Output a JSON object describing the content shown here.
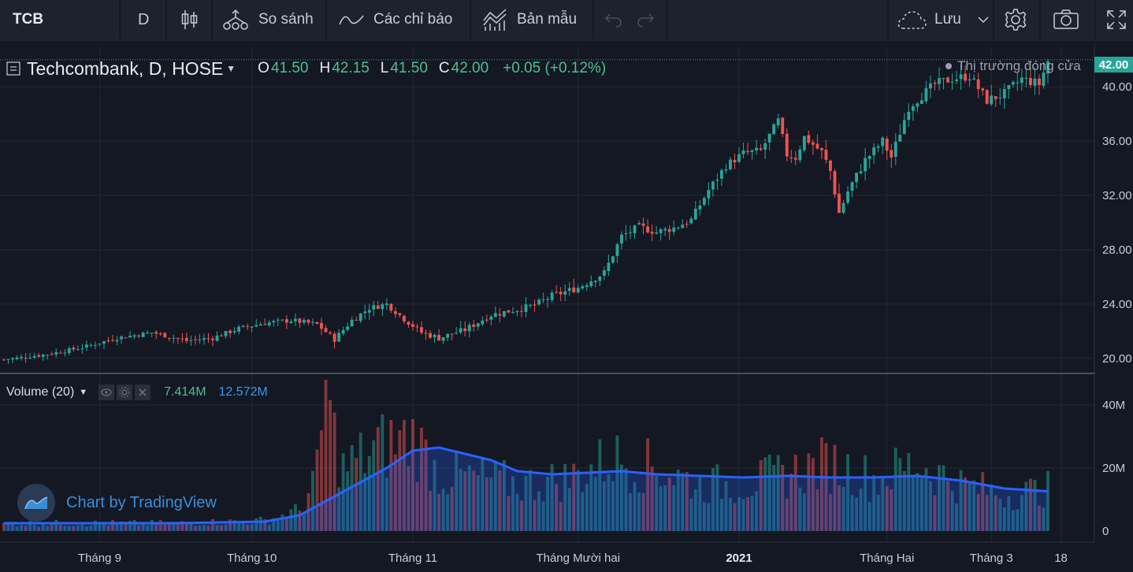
{
  "toolbar": {
    "symbol": "TCB",
    "interval": "D",
    "compare_label": "So sánh",
    "indicators_label": "Các chỉ báo",
    "templates_label": "Bản mẫu",
    "save_label": "Lưu"
  },
  "legend": {
    "title": "Techcombank, D, HOSE",
    "open_key": "O",
    "open": "41.50",
    "high_key": "H",
    "high": "42.15",
    "low_key": "L",
    "low": "41.50",
    "close_key": "C",
    "close": "42.00",
    "change": "+0.05 (+0.12%)"
  },
  "market_status": "Thị trường đóng cửa",
  "last_price_tag": "42.00",
  "volume_legend": {
    "label": "Volume (20)",
    "volume": "7.414M",
    "volume_ma": "12.572M"
  },
  "watermark": "Chart by TradingView",
  "colors": {
    "up": "#26a69a",
    "down": "#ef5350",
    "ma_line": "#2962ff",
    "background": "#141823"
  },
  "chart_data": [
    {
      "type": "candlestick",
      "symbol": "TCB",
      "price_axis": {
        "ticks": [
          "20.00",
          "24.00",
          "28.00",
          "32.00",
          "36.00",
          "40.00"
        ],
        "ylim": [
          19.0,
          42.8
        ]
      },
      "time_axis": {
        "ticks": [
          "Tháng 9",
          "Tháng 10",
          "Tháng 11",
          "Tháng Mười hai",
          "2021",
          "Tháng Hai",
          "Tháng 3",
          "18"
        ]
      },
      "grid": true,
      "close_points": [
        [
          0,
          19.9
        ],
        [
          10,
          20.3
        ],
        [
          18,
          20.8
        ],
        [
          26,
          21.5
        ],
        [
          34,
          21.9
        ],
        [
          42,
          21.3
        ],
        [
          48,
          21.5
        ],
        [
          54,
          22.2
        ],
        [
          60,
          22.6
        ],
        [
          66,
          22.8
        ],
        [
          72,
          22.5
        ],
        [
          76,
          21.4
        ],
        [
          80,
          22.8
        ],
        [
          84,
          23.7
        ],
        [
          88,
          24.0
        ],
        [
          92,
          22.9
        ],
        [
          96,
          21.9
        ],
        [
          100,
          21.5
        ],
        [
          106,
          22.1
        ],
        [
          112,
          23.2
        ],
        [
          118,
          23.6
        ],
        [
          122,
          23.9
        ],
        [
          126,
          24.6
        ],
        [
          132,
          25.2
        ],
        [
          138,
          26.3
        ],
        [
          142,
          29.0
        ],
        [
          146,
          29.7
        ],
        [
          150,
          29.3
        ],
        [
          154,
          29.6
        ],
        [
          158,
          30.2
        ],
        [
          162,
          32.4
        ],
        [
          166,
          34.2
        ],
        [
          170,
          35.1
        ],
        [
          174,
          35.3
        ],
        [
          178,
          37.5
        ],
        [
          180,
          35.0
        ],
        [
          182,
          34.8
        ],
        [
          184,
          36.3
        ],
        [
          188,
          35.2
        ],
        [
          190,
          33.8
        ],
        [
          192,
          30.7
        ],
        [
          194,
          32.3
        ],
        [
          198,
          34.6
        ],
        [
          202,
          36.0
        ],
        [
          204,
          34.8
        ],
        [
          208,
          38.5
        ],
        [
          214,
          40.2
        ],
        [
          218,
          40.6
        ],
        [
          222,
          40.8
        ],
        [
          226,
          39.0
        ],
        [
          230,
          39.5
        ],
        [
          234,
          40.6
        ],
        [
          238,
          40.2
        ],
        [
          240,
          41.9
        ]
      ]
    },
    {
      "type": "bar",
      "name": "Volume (20)",
      "axis": {
        "ticks": [
          "0",
          "20M",
          "40M"
        ],
        "ylim": [
          0,
          48
        ]
      },
      "peaks": [
        {
          "x": 0,
          "v": 3
        },
        {
          "x": 40,
          "v": 3
        },
        {
          "x": 60,
          "v": 4
        },
        {
          "x": 68,
          "v": 8
        },
        {
          "x": 72,
          "v": 22
        },
        {
          "x": 74,
          "v": 48
        },
        {
          "x": 78,
          "v": 24
        },
        {
          "x": 86,
          "v": 32
        },
        {
          "x": 94,
          "v": 36
        },
        {
          "x": 100,
          "v": 22
        },
        {
          "x": 110,
          "v": 20
        },
        {
          "x": 120,
          "v": 18
        },
        {
          "x": 130,
          "v": 20
        },
        {
          "x": 140,
          "v": 28
        },
        {
          "x": 150,
          "v": 24
        },
        {
          "x": 160,
          "v": 18
        },
        {
          "x": 170,
          "v": 18
        },
        {
          "x": 180,
          "v": 22
        },
        {
          "x": 190,
          "v": 26
        },
        {
          "x": 200,
          "v": 20
        },
        {
          "x": 210,
          "v": 26
        },
        {
          "x": 220,
          "v": 18
        },
        {
          "x": 230,
          "v": 14
        },
        {
          "x": 240,
          "v": 16
        }
      ],
      "ma_points": [
        [
          0,
          2.5
        ],
        [
          40,
          2.5
        ],
        [
          60,
          3.0
        ],
        [
          68,
          5.0
        ],
        [
          74,
          9.5
        ],
        [
          80,
          14.0
        ],
        [
          88,
          20.0
        ],
        [
          94,
          25.5
        ],
        [
          100,
          26.5
        ],
        [
          106,
          24.5
        ],
        [
          112,
          22.5
        ],
        [
          118,
          19.0
        ],
        [
          126,
          18.0
        ],
        [
          134,
          18.5
        ],
        [
          142,
          19.0
        ],
        [
          150,
          18.0
        ],
        [
          160,
          17.5
        ],
        [
          170,
          17.0
        ],
        [
          180,
          17.5
        ],
        [
          190,
          17.0
        ],
        [
          200,
          17.0
        ],
        [
          210,
          17.5
        ],
        [
          220,
          16.0
        ],
        [
          230,
          13.5
        ],
        [
          240,
          12.6
        ]
      ]
    }
  ]
}
